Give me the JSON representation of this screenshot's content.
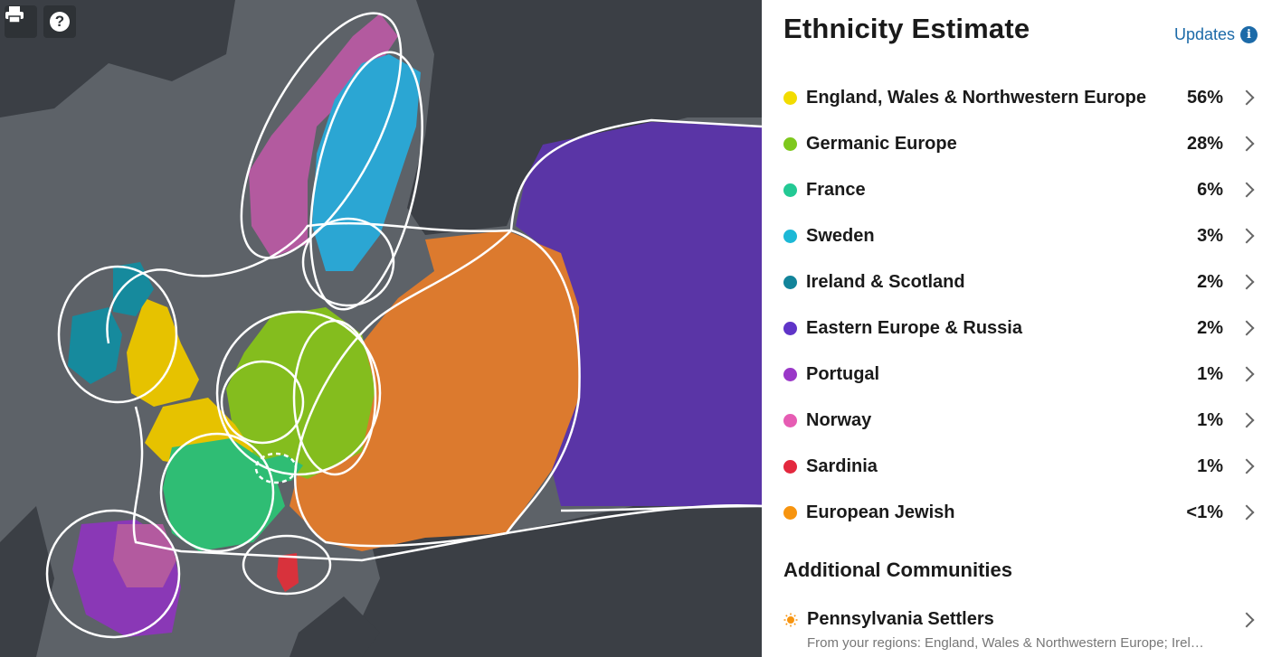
{
  "map": {
    "print_icon": "printer-icon",
    "help_icon": "question-mark-icon",
    "help_glyph": "?",
    "colors": {
      "water": "#5d6268",
      "land": "#3a3e44",
      "england": "#e6c200",
      "germanic": "#84bd1e",
      "france": "#2fbd74",
      "sweden": "#2ba6d3",
      "ireland": "#168a9d",
      "eastern": "#5a35a6",
      "portugal": "#8a38b6",
      "norway": "#b35a9f",
      "sardinia": "#d8323c",
      "jewish": "#dc7a2e"
    }
  },
  "panel": {
    "title": "Ethnicity Estimate",
    "updates_label": "Updates",
    "info_icon": "info-icon",
    "info_glyph": "i",
    "regions": [
      {
        "name": "England, Wales & Northwestern Europe",
        "percent": "56%",
        "color": "#f2dc00"
      },
      {
        "name": "Germanic Europe",
        "percent": "28%",
        "color": "#7ec81d"
      },
      {
        "name": "France",
        "percent": "6%",
        "color": "#23c994"
      },
      {
        "name": "Sweden",
        "percent": "3%",
        "color": "#1cb8d6"
      },
      {
        "name": "Ireland & Scotland",
        "percent": "2%",
        "color": "#12849a"
      },
      {
        "name": "Eastern Europe & Russia",
        "percent": "2%",
        "color": "#5f34c8"
      },
      {
        "name": "Portugal",
        "percent": "1%",
        "color": "#9a38c8"
      },
      {
        "name": "Norway",
        "percent": "1%",
        "color": "#e65cb3"
      },
      {
        "name": "Sardinia",
        "percent": "1%",
        "color": "#e3283e"
      },
      {
        "name": "European Jewish",
        "percent": "<1%",
        "color": "#f7940f"
      }
    ],
    "additional_title": "Additional Communities",
    "communities": [
      {
        "name": "Pennsylvania Settlers",
        "subtitle": "From your regions: England, Wales & Northwestern Europe; Irel…",
        "icon": "sun-icon",
        "color": "#f7940f"
      }
    ]
  }
}
